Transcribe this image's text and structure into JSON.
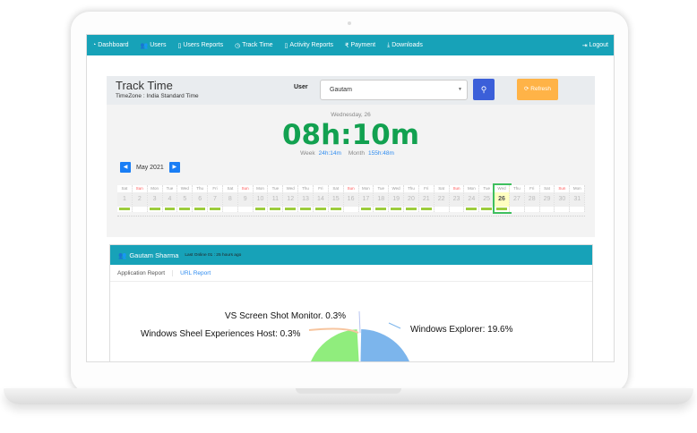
{
  "nav": {
    "items": [
      {
        "label": "Dashboard",
        "icon": "dashboard-icon"
      },
      {
        "label": "Users",
        "icon": "users-icon"
      },
      {
        "label": "Users Reports",
        "icon": "file-icon"
      },
      {
        "label": "Track Time",
        "icon": "clock-icon"
      },
      {
        "label": "Activity Reports",
        "icon": "file-icon"
      },
      {
        "label": "Payment",
        "icon": "rupee-icon"
      },
      {
        "label": "Downloads",
        "icon": "download-icon"
      }
    ],
    "logout": "Logout"
  },
  "track": {
    "title": "Track Time",
    "timezone": "TimeZone : India Standard Time",
    "user_label": "User",
    "user_value": "Gautam",
    "refresh": "Refresh",
    "day": "Wednesday, 26",
    "today": "08h:10m",
    "week_label": "Week",
    "week_value": "24h:14m",
    "month_label": "Month",
    "month_value": "155h:48m",
    "month": "May 2021"
  },
  "calendar": {
    "selected": 26,
    "days": [
      [
        "Sat",
        1,
        1
      ],
      [
        "Sun",
        2,
        0
      ],
      [
        "Mon",
        3,
        1
      ],
      [
        "Tue",
        4,
        1
      ],
      [
        "Wed",
        5,
        1
      ],
      [
        "Thu",
        6,
        1
      ],
      [
        "Fri",
        7,
        1
      ],
      [
        "Sat",
        8,
        0
      ],
      [
        "Sun",
        9,
        0
      ],
      [
        "Mon",
        10,
        1
      ],
      [
        "Tue",
        11,
        1
      ],
      [
        "Wed",
        12,
        1
      ],
      [
        "Thu",
        13,
        1
      ],
      [
        "Fri",
        14,
        1
      ],
      [
        "Sat",
        15,
        1
      ],
      [
        "Sun",
        16,
        0
      ],
      [
        "Mon",
        17,
        1
      ],
      [
        "Tue",
        18,
        1
      ],
      [
        "Wed",
        19,
        1
      ],
      [
        "Thu",
        20,
        1
      ],
      [
        "Fri",
        21,
        1
      ],
      [
        "Sat",
        22,
        0
      ],
      [
        "Sun",
        23,
        0
      ],
      [
        "Mon",
        24,
        1
      ],
      [
        "Tue",
        25,
        1
      ],
      [
        "Wed",
        26,
        1
      ],
      [
        "Thu",
        27,
        0
      ],
      [
        "Fri",
        28,
        0
      ],
      [
        "Sat",
        29,
        0
      ],
      [
        "Sun",
        30,
        0
      ],
      [
        "Mon",
        31,
        0
      ]
    ]
  },
  "card": {
    "name": "Gautam Sharma",
    "last_online": "Last Online 01 : 25 hours ago",
    "tabs": [
      "Application Report",
      "URL Report"
    ]
  },
  "chart_data": {
    "type": "pie",
    "slices": [
      {
        "label": "Windows Explorer: 19.6%",
        "value": 19.6,
        "color": "#7cb5ec"
      },
      {
        "label": "VS Screen Shot Monitor. 0.3%",
        "value": 0.3,
        "color": "#b8c4f0"
      },
      {
        "label": "Windows Sheel Experiences Host: 0.3%",
        "value": 0.3,
        "color": "#f7c59f"
      }
    ],
    "other_color": "#90ed7d"
  },
  "colors": {
    "nav": "#17a2b8",
    "accent_green": "#12a150",
    "refresh": "#ffb347",
    "search": "#3b5fd9"
  }
}
